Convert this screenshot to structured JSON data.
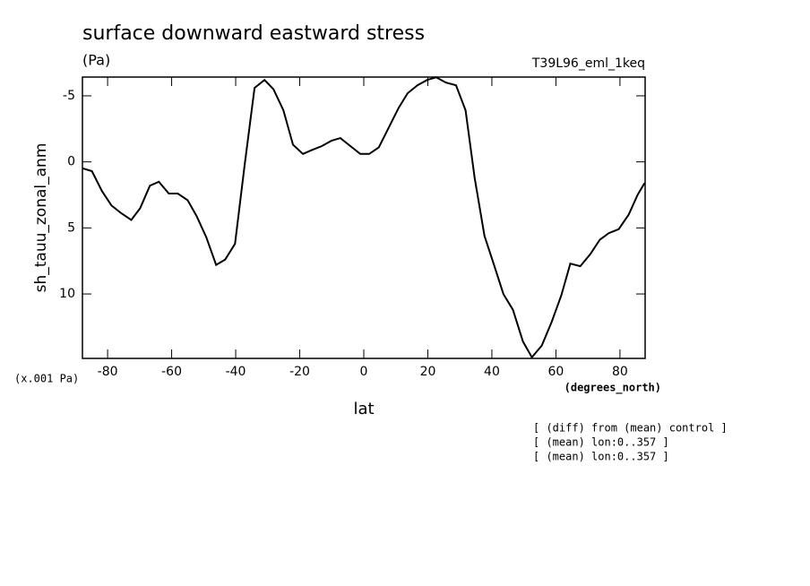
{
  "chart_data": {
    "type": "line",
    "title": "surface downward eastward stress",
    "subtitle": "(Pa)",
    "run_label": "T39L96_eml_1keq",
    "y_label": "sh_tauu_zonal_anm",
    "y_units": "(x.001 Pa)",
    "x_label": "lat",
    "x_units": "(degrees_north)",
    "notes": [
      "[ (diff) from (mean) control ]",
      "[ (mean) lon:0..357 ]",
      "[ (mean) lon:0..357 ]"
    ],
    "xlim": [
      -87.86,
      87.86
    ],
    "xticks": [
      -80,
      -60,
      -40,
      -20,
      0,
      20,
      40,
      60,
      80
    ],
    "ylim": [
      -6.42,
      14.88
    ],
    "y_inverted": true,
    "yticks": [
      -5,
      0,
      5,
      10
    ],
    "color": "#000000",
    "x": [
      -87.7,
      -84.9,
      -81.8,
      -78.8,
      -75.7,
      -72.6,
      -69.8,
      -66.8,
      -64.0,
      -60.9,
      -58.1,
      -55.0,
      -52.2,
      -49.2,
      -46.1,
      -43.3,
      -40.2,
      -37.2,
      -34.1,
      -31.0,
      -28.2,
      -25.1,
      -22.1,
      -19.0,
      -16.2,
      -13.1,
      -10.1,
      -7.3,
      -4.2,
      -1.1,
      1.7,
      4.7,
      7.8,
      10.9,
      13.7,
      16.8,
      19.8,
      22.6,
      25.7,
      28.8,
      31.8,
      34.6,
      37.7,
      40.8,
      43.6,
      46.6,
      49.7,
      52.5,
      55.6,
      58.7,
      61.7,
      64.5,
      67.6,
      70.7,
      73.7,
      76.5,
      79.6,
      82.7,
      85.5,
      87.7
    ],
    "values": [
      0.5,
      0.7,
      2.2,
      3.3,
      3.9,
      4.4,
      3.5,
      1.8,
      1.5,
      2.4,
      2.4,
      2.9,
      4.1,
      5.7,
      7.8,
      7.4,
      6.2,
      0.2,
      -5.6,
      -6.2,
      -5.5,
      -3.9,
      -1.3,
      -0.6,
      -0.9,
      -1.2,
      -1.6,
      -1.8,
      -1.2,
      -0.6,
      -0.6,
      -1.1,
      -2.6,
      -4.1,
      -5.2,
      -5.8,
      -6.2,
      -6.4,
      -6.0,
      -5.8,
      -3.9,
      1.2,
      5.6,
      7.9,
      10.0,
      11.2,
      13.6,
      14.8,
      13.9,
      12.1,
      10.1,
      7.7,
      7.9,
      7.0,
      5.9,
      5.4,
      5.1,
      4.0,
      2.5,
      1.6
    ]
  }
}
